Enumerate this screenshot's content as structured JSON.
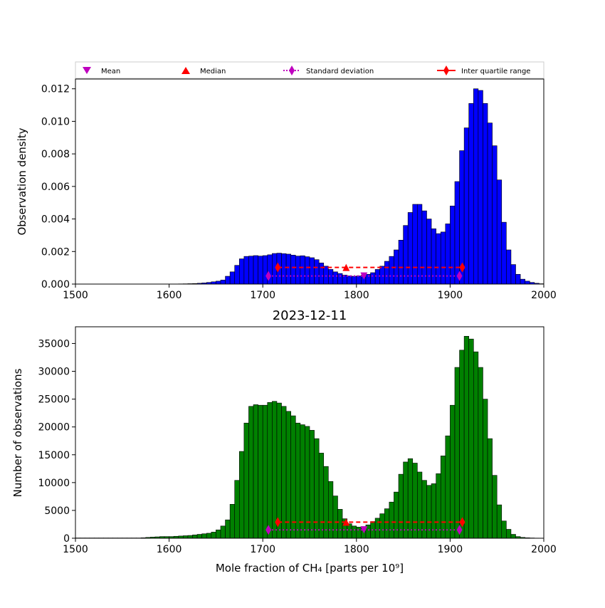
{
  "legend": {
    "items": [
      {
        "label": "Mean",
        "marker": "triangle-down",
        "color": "#bf00bf"
      },
      {
        "label": "Median",
        "marker": "triangle-up",
        "color": "#ff0000"
      },
      {
        "label": "Standard deviation",
        "marker": "diamond",
        "color": "#bf00bf",
        "line": "dotted"
      },
      {
        "label": "Inter quartile range",
        "marker": "diamond",
        "color": "#ff0000",
        "line": "solid"
      }
    ]
  },
  "chart_data": [
    {
      "type": "bar",
      "title": "",
      "xlabel": "",
      "ylabel": "Observation density",
      "xlim": [
        1500,
        2000
      ],
      "ylim": [
        0,
        0.0126
      ],
      "xticks": [
        "1500",
        "1600",
        "1700",
        "1800",
        "1900",
        "2000"
      ],
      "yticks": [
        "0.000",
        "0.002",
        "0.004",
        "0.006",
        "0.008",
        "0.010",
        "0.012"
      ],
      "bar_color": "#0000ff",
      "bin_start": 1500,
      "bin_width": 5,
      "values": [
        0,
        0,
        0,
        0,
        0,
        0,
        0,
        0,
        0,
        0,
        0,
        0,
        0,
        0,
        0,
        0,
        0,
        0,
        2e-06,
        4e-06,
        6e-06,
        8e-06,
        1.2e-05,
        1.6e-05,
        2.4e-05,
        3.2e-05,
        5e-05,
        7e-05,
        0.0001,
        0.00014,
        0.00018,
        0.00025,
        0.00048,
        0.00075,
        0.00115,
        0.00155,
        0.0017,
        0.00172,
        0.00175,
        0.00172,
        0.00175,
        0.0018,
        0.00188,
        0.0019,
        0.00187,
        0.00184,
        0.00178,
        0.00172,
        0.00174,
        0.00168,
        0.00162,
        0.0015,
        0.0013,
        0.0011,
        0.0009,
        0.00075,
        0.00065,
        0.00055,
        0.0005,
        0.00048,
        0.0005,
        0.00055,
        0.0006,
        0.0007,
        0.0009,
        0.0011,
        0.0014,
        0.0017,
        0.0021,
        0.0027,
        0.0036,
        0.0044,
        0.0049,
        0.0049,
        0.0045,
        0.004,
        0.0034,
        0.0031,
        0.0032,
        0.0037,
        0.0048,
        0.0063,
        0.0082,
        0.0096,
        0.0111,
        0.012,
        0.0119,
        0.0111,
        0.0099,
        0.0085,
        0.0064,
        0.0038,
        0.0021,
        0.0012,
        0.0006,
        0.0003,
        0.00018,
        0.0001,
        5e-05,
        2e-05
      ],
      "stats": {
        "mean": 1808,
        "median": 1789,
        "std_range": [
          1706,
          1910
        ],
        "iqr_range": [
          1716,
          1913
        ]
      },
      "stat_marker_y": {
        "mean": 0.0005,
        "median": 0.00102,
        "std": 0.0005,
        "iqr": 0.00102
      }
    },
    {
      "type": "bar",
      "title": "2023-12-11",
      "xlabel": "Mole fraction of CH₄ [parts per 10⁹]",
      "ylabel": "Number of observations",
      "xlim": [
        1500,
        2000
      ],
      "ylim": [
        0,
        38000
      ],
      "xticks": [
        "1500",
        "1600",
        "1700",
        "1800",
        "1900",
        "2000"
      ],
      "yticks": [
        "0",
        "5000",
        "10000",
        "15000",
        "20000",
        "25000",
        "30000",
        "35000"
      ],
      "bar_color": "#008000",
      "bin_start": 1500,
      "bin_width": 5,
      "values": [
        50,
        50,
        50,
        50,
        50,
        50,
        50,
        50,
        50,
        50,
        50,
        50,
        50,
        50,
        80,
        150,
        200,
        250,
        300,
        300,
        300,
        350,
        400,
        450,
        500,
        600,
        700,
        800,
        900,
        1100,
        1500,
        2200,
        3300,
        6100,
        10400,
        15600,
        20700,
        23700,
        24000,
        23900,
        23900,
        24400,
        24600,
        24300,
        23700,
        22800,
        22000,
        20700,
        20400,
        20100,
        19400,
        17900,
        15300,
        12900,
        10200,
        7600,
        5200,
        3500,
        2600,
        2200,
        2000,
        2100,
        2400,
        3000,
        3600,
        4400,
        5300,
        6500,
        8300,
        11500,
        13700,
        14300,
        13500,
        11900,
        10400,
        9500,
        9800,
        11600,
        14800,
        18400,
        23900,
        30700,
        33800,
        36300,
        35800,
        33500,
        30700,
        25000,
        17900,
        11300,
        6000,
        3100,
        1600,
        700,
        300,
        150,
        80,
        50,
        30,
        20
      ],
      "stats": {
        "mean": 1808,
        "median": 1789,
        "std_range": [
          1706,
          1910
        ],
        "iqr_range": [
          1716,
          1913
        ]
      },
      "stat_marker_y": {
        "mean": 1500,
        "median": 2900,
        "std": 1500,
        "iqr": 2900
      }
    }
  ]
}
